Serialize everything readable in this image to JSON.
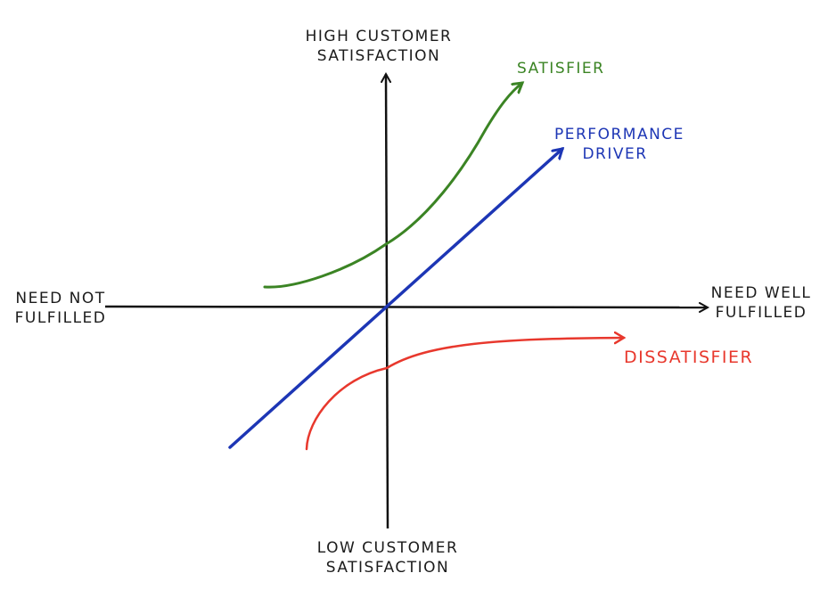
{
  "axes": {
    "y_top_label": [
      "HIGH CUSTOMER",
      "SATISFACTION"
    ],
    "y_bottom_label": [
      "LOW CUSTOMER",
      "SATISFACTION"
    ],
    "x_left_label": [
      "NEED NOT",
      "FULFILLED"
    ],
    "x_right_label": [
      "NEED WELL",
      "FULFILLED"
    ]
  },
  "curves": {
    "satisfier": {
      "label": "SATISFIER",
      "color": "#3b8424"
    },
    "performance": {
      "label": [
        "PERFORMANCE",
        "DRIVER"
      ],
      "color": "#1d36b5"
    },
    "dissatisfier": {
      "label": "DISSATISFIER",
      "color": "#e8382d"
    }
  },
  "axis_color": "#111111"
}
